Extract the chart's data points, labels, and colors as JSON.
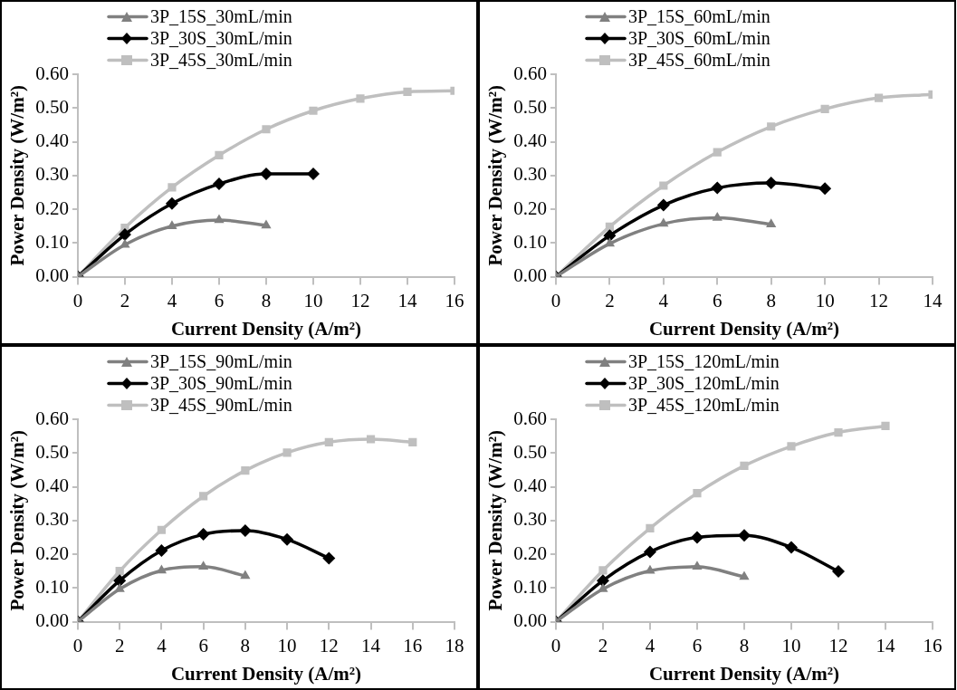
{
  "chart_data": [
    {
      "type": "line",
      "xlabel": "Current Density (A/m²)",
      "ylabel": "Power Density (W/m²)",
      "legend": "top left",
      "grid": false,
      "xlim": [
        0,
        16
      ],
      "xticks": [
        0,
        2,
        4,
        6,
        8,
        10,
        12,
        14,
        16
      ],
      "ylim": [
        0,
        0.6
      ],
      "yticks": [
        {
          "value": 0,
          "label": "0.00"
        },
        {
          "value": 0.1,
          "label": "0.10"
        },
        {
          "value": 0.2,
          "label": "0.20"
        },
        {
          "value": 0.3,
          "label": "0.30"
        },
        {
          "value": 0.4,
          "label": "0.40"
        },
        {
          "value": 0.5,
          "label": "0.50"
        },
        {
          "value": 0.6,
          "label": "0.60"
        }
      ],
      "series": [
        {
          "name": "3P_15S_30mL/min",
          "color": "#808080",
          "marker": "triangle",
          "x": [
            0,
            2,
            4,
            6,
            8
          ],
          "values": [
            0,
            0.095,
            0.15,
            0.168,
            0.152
          ]
        },
        {
          "name": "3P_30S_30mL/min",
          "color": "#000000",
          "marker": "diamond",
          "x": [
            0,
            2,
            4,
            6,
            8,
            10
          ],
          "values": [
            0,
            0.125,
            0.217,
            0.275,
            0.305,
            0.305
          ]
        },
        {
          "name": "3P_45S_30mL/min",
          "color": "#bfbfbf",
          "marker": "square",
          "x": [
            0,
            2,
            4,
            6,
            8,
            10,
            12,
            14,
            16
          ],
          "values": [
            0,
            0.145,
            0.265,
            0.36,
            0.437,
            0.492,
            0.528,
            0.548,
            0.551
          ]
        }
      ]
    },
    {
      "type": "line",
      "xlabel": "Current Density (A/m²)",
      "ylabel": "Power Density (W/m²)",
      "legend": "top left",
      "grid": false,
      "xlim": [
        0,
        14
      ],
      "xticks": [
        0,
        2,
        4,
        6,
        8,
        10,
        12,
        14
      ],
      "ylim": [
        0,
        0.6
      ],
      "yticks": [
        {
          "value": 0,
          "label": "0.00"
        },
        {
          "value": 0.1,
          "label": "0.10"
        },
        {
          "value": 0.2,
          "label": "0.20"
        },
        {
          "value": 0.3,
          "label": "0.30"
        },
        {
          "value": 0.4,
          "label": "0.40"
        },
        {
          "value": 0.5,
          "label": "0.50"
        },
        {
          "value": 0.6,
          "label": "0.60"
        }
      ],
      "series": [
        {
          "name": "3P_15S_60mL/min",
          "color": "#808080",
          "marker": "triangle",
          "x": [
            0,
            2,
            4,
            6,
            8
          ],
          "values": [
            0,
            0.098,
            0.157,
            0.175,
            0.155
          ]
        },
        {
          "name": "3P_30S_60mL/min",
          "color": "#000000",
          "marker": "diamond",
          "x": [
            0,
            2,
            4,
            6,
            8,
            10
          ],
          "values": [
            0,
            0.122,
            0.212,
            0.263,
            0.278,
            0.261
          ]
        },
        {
          "name": "3P_45S_60mL/min",
          "color": "#bfbfbf",
          "marker": "square",
          "x": [
            0,
            2,
            4,
            6,
            8,
            10,
            12,
            14
          ],
          "values": [
            0,
            0.148,
            0.27,
            0.369,
            0.445,
            0.497,
            0.53,
            0.54
          ]
        }
      ]
    },
    {
      "type": "line",
      "xlabel": "Current Density (A/m²)",
      "ylabel": "Power Density (W/m²)",
      "legend": "top left",
      "grid": false,
      "xlim": [
        0,
        18
      ],
      "xticks": [
        0,
        2,
        4,
        6,
        8,
        10,
        12,
        14,
        16,
        18
      ],
      "ylim": [
        0,
        0.6
      ],
      "yticks": [
        {
          "value": 0,
          "label": "0.00"
        },
        {
          "value": 0.1,
          "label": "0.10"
        },
        {
          "value": 0.2,
          "label": "0.20"
        },
        {
          "value": 0.3,
          "label": "0.30"
        },
        {
          "value": 0.4,
          "label": "0.40"
        },
        {
          "value": 0.5,
          "label": "0.50"
        },
        {
          "value": 0.6,
          "label": "0.60"
        }
      ],
      "series": [
        {
          "name": "3P_15S_90mL/min",
          "color": "#808080",
          "marker": "triangle",
          "x": [
            0,
            2,
            4,
            6,
            8
          ],
          "values": [
            0,
            0.097,
            0.152,
            0.163,
            0.136
          ]
        },
        {
          "name": "3P_30S_90mL/min",
          "color": "#000000",
          "marker": "diamond",
          "x": [
            0,
            2,
            4,
            6,
            8,
            10,
            12
          ],
          "values": [
            0,
            0.122,
            0.211,
            0.259,
            0.27,
            0.244,
            0.188
          ]
        },
        {
          "name": "3P_45S_90mL/min",
          "color": "#bfbfbf",
          "marker": "square",
          "x": [
            0,
            2,
            4,
            6,
            8,
            10,
            12,
            14,
            16
          ],
          "values": [
            0,
            0.15,
            0.272,
            0.372,
            0.448,
            0.501,
            0.532,
            0.541,
            0.532
          ]
        }
      ]
    },
    {
      "type": "line",
      "xlabel": "Current Density (A/m²)",
      "ylabel": "Power Density (W/m²)",
      "legend": "top left",
      "grid": false,
      "xlim": [
        0,
        16
      ],
      "xticks": [
        0,
        2,
        4,
        6,
        8,
        10,
        12,
        14,
        16
      ],
      "ylim": [
        0,
        0.6
      ],
      "yticks": [
        {
          "value": 0,
          "label": "0.00"
        },
        {
          "value": 0.1,
          "label": "0.10"
        },
        {
          "value": 0.2,
          "label": "0.20"
        },
        {
          "value": 0.3,
          "label": "0.30"
        },
        {
          "value": 0.4,
          "label": "0.40"
        },
        {
          "value": 0.5,
          "label": "0.50"
        },
        {
          "value": 0.6,
          "label": "0.60"
        }
      ],
      "series": [
        {
          "name": "3P_15S_120mL/min",
          "color": "#808080",
          "marker": "triangle",
          "x": [
            0,
            2,
            4,
            6,
            8
          ],
          "values": [
            0,
            0.097,
            0.151,
            0.163,
            0.133
          ]
        },
        {
          "name": "3P_30S_120mL/min",
          "color": "#000000",
          "marker": "diamond",
          "x": [
            0,
            2,
            4,
            6,
            8,
            10,
            12
          ],
          "values": [
            0,
            0.122,
            0.207,
            0.25,
            0.256,
            0.22,
            0.149
          ]
        },
        {
          "name": "3P_45S_120mL/min",
          "color": "#bfbfbf",
          "marker": "square",
          "x": [
            0,
            2,
            4,
            6,
            8,
            10,
            12,
            14
          ],
          "values": [
            0,
            0.152,
            0.277,
            0.381,
            0.462,
            0.52,
            0.561,
            0.58
          ]
        }
      ]
    }
  ]
}
